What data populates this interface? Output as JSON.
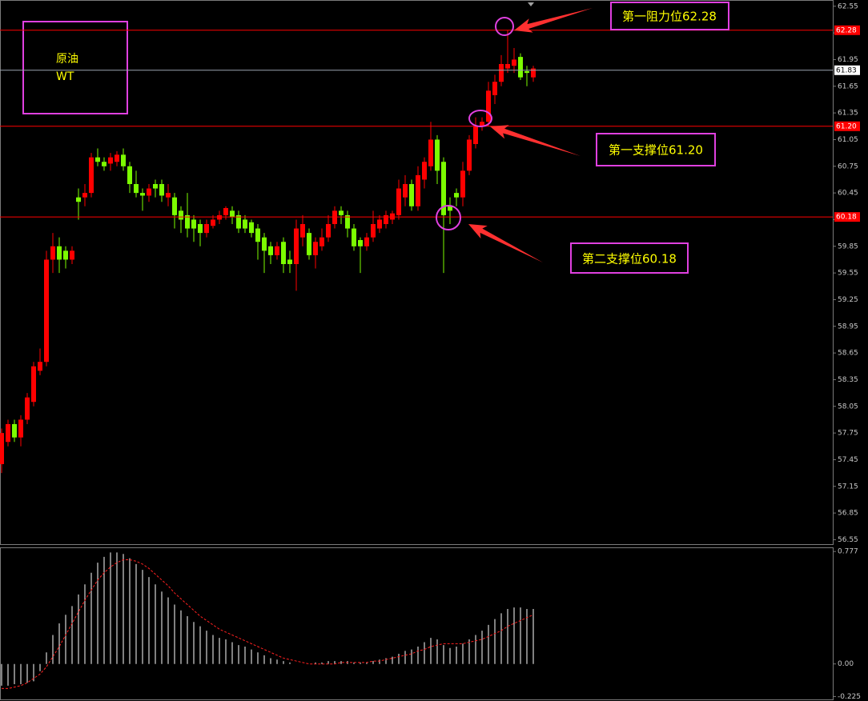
{
  "chart_data": [
    {
      "type": "candlestick",
      "label": [
        "原油",
        "WT"
      ],
      "annotations": [
        "第一阻力位62.28",
        "第一支撑位61.20",
        "第二支撑位60.18"
      ],
      "up_color": "#ff0000",
      "down_color": "#7cfc00",
      "open": [
        57.4,
        57.65,
        57.85,
        57.7,
        57.9,
        58.1,
        58.45,
        58.55,
        59.7,
        59.85,
        59.8,
        59.7,
        60.4,
        60.4,
        60.45,
        60.85,
        60.8,
        60.78,
        60.8,
        60.88,
        60.75,
        60.55,
        60.45,
        60.42,
        60.55,
        60.55,
        60.4,
        60.4,
        60.25,
        60.2,
        60.15,
        60.1,
        60.0,
        60.08,
        60.15,
        60.2,
        60.25,
        60.2,
        60.15,
        60.12,
        60.05,
        59.95,
        59.85,
        59.75,
        59.9,
        59.7,
        59.65,
        59.95,
        60.0,
        59.75,
        59.85,
        59.95,
        60.1,
        60.25,
        60.2,
        60.05,
        59.92,
        59.85,
        59.95,
        60.05,
        60.1,
        60.15,
        60.2,
        60.4,
        60.55,
        60.3,
        60.6,
        60.75,
        61.05,
        60.8,
        60.3,
        60.45,
        60.4,
        60.7,
        61.0,
        61.2,
        61.25,
        61.55,
        61.7,
        61.85,
        61.88,
        61.98,
        61.82,
        61.75
      ],
      "high": [
        57.8,
        57.9,
        57.9,
        57.95,
        58.2,
        58.55,
        58.7,
        59.8,
        60.0,
        59.95,
        59.85,
        59.85,
        60.5,
        60.55,
        60.9,
        60.95,
        60.85,
        60.9,
        60.92,
        60.95,
        60.8,
        60.7,
        60.5,
        60.55,
        60.6,
        60.6,
        60.55,
        60.45,
        60.3,
        60.45,
        60.2,
        60.15,
        60.15,
        60.2,
        60.25,
        60.3,
        60.3,
        60.25,
        60.2,
        60.15,
        60.1,
        60.0,
        59.9,
        59.9,
        59.95,
        59.8,
        60.15,
        60.2,
        60.05,
        59.95,
        60.05,
        60.2,
        60.3,
        60.3,
        60.25,
        60.1,
        59.95,
        60.0,
        60.25,
        60.2,
        60.25,
        60.25,
        60.6,
        60.65,
        60.6,
        60.75,
        60.85,
        61.25,
        61.1,
        60.85,
        60.4,
        60.5,
        60.8,
        61.1,
        61.3,
        61.3,
        61.7,
        61.78,
        62.0,
        62.28,
        62.08,
        62.02,
        61.88,
        61.88
      ],
      "low": [
        57.3,
        57.6,
        57.65,
        57.6,
        57.85,
        58.05,
        58.4,
        58.5,
        59.55,
        59.55,
        59.6,
        59.65,
        60.15,
        60.3,
        60.4,
        60.75,
        60.7,
        60.7,
        60.75,
        60.7,
        60.45,
        60.4,
        60.25,
        60.35,
        60.4,
        60.35,
        60.3,
        60.05,
        60.0,
        59.95,
        59.9,
        59.85,
        59.95,
        60.05,
        60.1,
        60.15,
        60.1,
        60.0,
        60.0,
        59.95,
        59.7,
        59.55,
        59.65,
        59.7,
        59.55,
        59.55,
        59.35,
        59.85,
        59.7,
        59.6,
        59.8,
        59.9,
        60.05,
        60.1,
        59.95,
        59.8,
        59.55,
        59.8,
        59.9,
        60.0,
        60.05,
        60.1,
        60.15,
        60.3,
        60.25,
        60.25,
        60.5,
        60.7,
        60.55,
        59.55,
        60.1,
        60.3,
        60.3,
        60.65,
        60.95,
        61.15,
        61.2,
        61.45,
        61.65,
        61.8,
        61.8,
        61.72,
        61.65,
        61.7
      ],
      "close": [
        57.75,
        57.85,
        57.7,
        57.9,
        58.15,
        58.5,
        58.55,
        59.7,
        59.85,
        59.7,
        59.7,
        59.8,
        60.35,
        60.45,
        60.85,
        60.8,
        60.75,
        60.85,
        60.88,
        60.75,
        60.55,
        60.45,
        60.42,
        60.5,
        60.5,
        60.42,
        60.45,
        60.2,
        60.15,
        60.05,
        60.05,
        60.0,
        60.1,
        60.15,
        60.2,
        60.28,
        60.18,
        60.05,
        60.05,
        60.0,
        59.9,
        59.8,
        59.75,
        59.85,
        59.65,
        59.65,
        60.05,
        60.1,
        59.75,
        59.9,
        59.95,
        60.1,
        60.25,
        60.2,
        60.05,
        59.85,
        59.85,
        59.95,
        60.1,
        60.15,
        60.2,
        60.22,
        60.5,
        60.55,
        60.3,
        60.65,
        60.8,
        61.05,
        60.7,
        60.2,
        60.25,
        60.4,
        60.7,
        61.05,
        61.2,
        61.25,
        61.6,
        61.7,
        61.9,
        61.9,
        61.95,
        61.75,
        61.8,
        61.85
      ],
      "levels": [
        62.28,
        {
          "value": 61.2,
          "label": "61.20"
        },
        60.18
      ],
      "level_color": "#ff0000",
      "current": 61.83,
      "ylim": [
        56.5,
        62.62
      ],
      "yticks": [
        62.55,
        62.25,
        61.95,
        61.65,
        61.35,
        61.05,
        60.75,
        60.45,
        60.15,
        59.85,
        59.55,
        59.25,
        58.95,
        58.65,
        58.35,
        58.05,
        57.75,
        57.45,
        57.15,
        56.85,
        56.55
      ]
    },
    {
      "type": "histogram-line",
      "series": [
        {
          "kind": "bar",
          "color": "#ffffff",
          "values": [
            -0.15,
            -0.15,
            -0.14,
            -0.14,
            -0.13,
            -0.12,
            -0.05,
            0.08,
            0.2,
            0.28,
            0.34,
            0.4,
            0.48,
            0.55,
            0.63,
            0.7,
            0.74,
            0.77,
            0.77,
            0.76,
            0.73,
            0.69,
            0.65,
            0.6,
            0.55,
            0.5,
            0.46,
            0.41,
            0.37,
            0.33,
            0.29,
            0.26,
            0.23,
            0.2,
            0.18,
            0.17,
            0.15,
            0.13,
            0.12,
            0.1,
            0.08,
            0.06,
            0.04,
            0.03,
            0.02,
            0.01,
            0.0,
            0.0,
            0.0,
            0.01,
            0.01,
            0.02,
            0.02,
            0.02,
            0.02,
            0.01,
            0.01,
            0.01,
            0.02,
            0.03,
            0.04,
            0.05,
            0.07,
            0.09,
            0.1,
            0.12,
            0.15,
            0.18,
            0.17,
            0.13,
            0.11,
            0.12,
            0.14,
            0.17,
            0.2,
            0.23,
            0.27,
            0.31,
            0.35,
            0.38,
            0.39,
            0.39,
            0.38,
            0.38
          ]
        },
        {
          "kind": "line",
          "color": "#ff2020",
          "values": [
            -0.17,
            -0.17,
            -0.16,
            -0.15,
            -0.13,
            -0.1,
            -0.07,
            -0.02,
            0.05,
            0.12,
            0.2,
            0.28,
            0.36,
            0.44,
            0.51,
            0.58,
            0.63,
            0.67,
            0.7,
            0.72,
            0.72,
            0.71,
            0.69,
            0.66,
            0.62,
            0.58,
            0.54,
            0.49,
            0.45,
            0.41,
            0.37,
            0.33,
            0.3,
            0.27,
            0.24,
            0.22,
            0.2,
            0.18,
            0.16,
            0.14,
            0.12,
            0.1,
            0.08,
            0.06,
            0.04,
            0.03,
            0.02,
            0.01,
            0.0,
            0.0,
            0.0,
            0.0,
            0.0,
            0.01,
            0.01,
            0.01,
            0.01,
            0.01,
            0.02,
            0.02,
            0.03,
            0.04,
            0.05,
            0.06,
            0.07,
            0.09,
            0.1,
            0.12,
            0.13,
            0.14,
            0.14,
            0.14,
            0.14,
            0.15,
            0.16,
            0.17,
            0.19,
            0.21,
            0.23,
            0.26,
            0.28,
            0.3,
            0.32,
            0.34
          ]
        }
      ],
      "ylim": [
        -0.245,
        0.8
      ],
      "yticks": [
        0.777,
        {
          "value": 0,
          "label": "0.00"
        },
        -0.225
      ]
    }
  ]
}
